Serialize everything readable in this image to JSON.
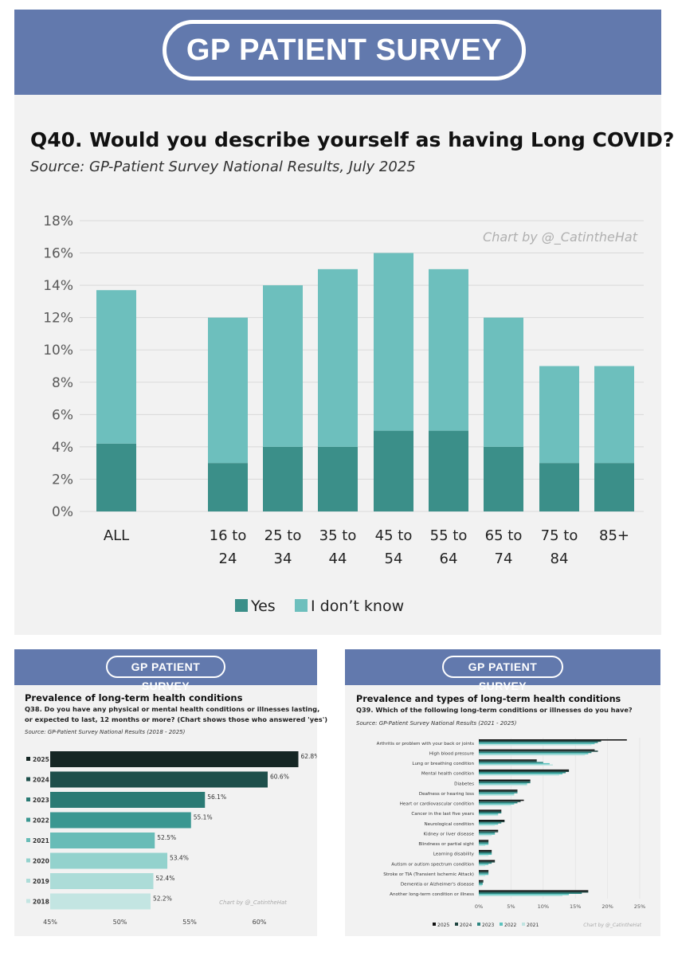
{
  "banner_title": "GP PATIENT SURVEY",
  "colors": {
    "yes": "#3b8f89",
    "dont_know": "#6dbfbd",
    "banner": "#6279ad",
    "panel": "#f2f2f2"
  },
  "main": {
    "title": "Q40. Would you describe yourself as having Long COVID?",
    "source": "Source: GP-Patient Survey National Results, July 2025",
    "credit": "Chart by @_CatintheHat"
  },
  "chart_data": [
    {
      "type": "bar",
      "stacked": true,
      "title": "Q40. Would you describe yourself as having Long COVID?",
      "categories": [
        "ALL",
        "16 to 24",
        "25 to 34",
        "35 to 44",
        "45 to 54",
        "55 to 64",
        "65 to 74",
        "75 to 84",
        "85+"
      ],
      "category_lines": [
        [
          "ALL"
        ],
        [
          "16 to",
          "24"
        ],
        [
          "25 to",
          "34"
        ],
        [
          "35 to",
          "44"
        ],
        [
          "45 to",
          "54"
        ],
        [
          "55 to",
          "64"
        ],
        [
          "65 to",
          "74"
        ],
        [
          "75 to",
          "84"
        ],
        [
          "85+"
        ]
      ],
      "series": [
        {
          "name": "Yes",
          "values": [
            4.2,
            3,
            4,
            4,
            5,
            5,
            4,
            3,
            3
          ]
        },
        {
          "name": "I don’t know",
          "values": [
            9.5,
            9,
            10,
            11,
            11,
            10,
            8,
            6,
            6
          ]
        }
      ],
      "yticks": [
        "0%",
        "2%",
        "4%",
        "6%",
        "8%",
        "10%",
        "12%",
        "14%",
        "16%",
        "18%"
      ],
      "ylim": [
        0,
        18
      ],
      "legend": "bottom"
    },
    {
      "type": "bar",
      "orientation": "horizontal",
      "title": "Prevalence of long-term health conditions",
      "question": "Q38. Do you have any physical or mental health conditions or illnesses lasting, or expected to last, 12 months or more? (Chart shows those who answered 'yes')",
      "question_lines": [
        "Q38. Do you have any physical or mental health conditions or illnesses lasting,",
        "or expected to last, 12 months or more? (Chart shows those who answered 'yes')"
      ],
      "source": "Source: GP-Patient Survey National Results (2018 - 2025)",
      "categories": [
        "2025",
        "2024",
        "2023",
        "2022",
        "2021",
        "2020",
        "2019",
        "2018"
      ],
      "values": [
        62.8,
        60.6,
        56.1,
        55.1,
        52.5,
        53.4,
        52.4,
        52.2
      ],
      "value_labels": [
        "62.8%",
        "60.6%",
        "56.1%",
        "55.1%",
        "52.5%",
        "53.4%",
        "52.4%",
        "52.2%"
      ],
      "bar_colors": [
        "#152624",
        "#1e4f4b",
        "#2a7a74",
        "#3a9791",
        "#68bcb7",
        "#93d2cd",
        "#acdcd8",
        "#c3e5e2"
      ],
      "xticks": [
        "45%",
        "50%",
        "55%",
        "60%"
      ],
      "xlim": [
        45,
        63
      ],
      "credit": "Chart by @_CatintheHat"
    },
    {
      "type": "bar",
      "orientation": "horizontal",
      "title": "Prevalence and types of long-term health conditions",
      "question": "Q39. Which of the following long-term conditions or illnesses do you have?",
      "source": "Source: GP-Patient Survey National Results (2021 - 2025)",
      "categories": [
        "Arthritis or problem with your back or joints",
        "High blood pressure",
        "Lung or breathing condition",
        "Mental health condition",
        "Diabetes",
        "Deafness or hearing loss",
        "Heart or cardiovascular condition",
        "Cancer in the last five years",
        "Neurological condition",
        "Kidney or liver disease",
        "Blindness or partial sight",
        "Learning disability",
        "Autism or autism spectrum condition",
        "Stroke or TIA (Transient Ischemic Attack)",
        "Dementia or Alzheimer's disease",
        "Another long-term condition or illness"
      ],
      "series": [
        {
          "name": "2025",
          "values": [
            23,
            18,
            9,
            14,
            8,
            6,
            7,
            3.5,
            4,
            3,
            1.5,
            2,
            2.5,
            1.5,
            0.7,
            17
          ]
        },
        {
          "name": "2024",
          "values": [
            19,
            18.5,
            9,
            14,
            8,
            6,
            6.5,
            3.5,
            4,
            3,
            1.5,
            2,
            2.5,
            1.5,
            0.7,
            17
          ]
        },
        {
          "name": "2023",
          "values": [
            18.5,
            17.5,
            10,
            13.5,
            8,
            6,
            6,
            3.5,
            3.5,
            2.5,
            1.5,
            2,
            2,
            1.5,
            0.6,
            16
          ]
        },
        {
          "name": "2022",
          "values": [
            18,
            17,
            11,
            13,
            7.5,
            5.5,
            5.5,
            3,
            3,
            2.5,
            1.5,
            2,
            1.5,
            1.5,
            0.6,
            14
          ]
        },
        {
          "name": "2021",
          "values": [
            17.5,
            16.5,
            11.5,
            12.5,
            7.5,
            5.5,
            5,
            3,
            2.5,
            2,
            1,
            1.5,
            1,
            1,
            0.5,
            13
          ]
        }
      ],
      "series_colors": [
        "#111111",
        "#1f4440",
        "#2c8580",
        "#5cc3be",
        "#bfe4e1"
      ],
      "xticks": [
        "0%",
        "5%",
        "10%",
        "15%",
        "20%",
        "25%"
      ],
      "xlim": [
        0,
        25
      ],
      "credit": "Chart by @_CatintheHat"
    }
  ]
}
